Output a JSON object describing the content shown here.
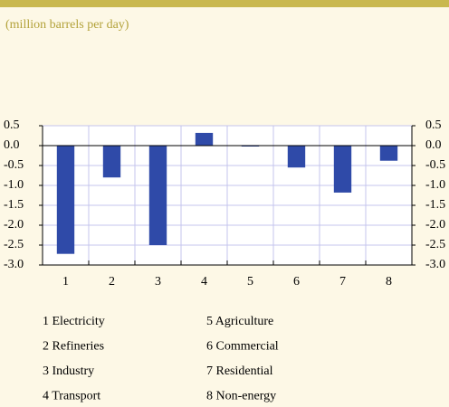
{
  "chart_data": {
    "type": "bar",
    "subtitle": "(million barrels per day)",
    "categories": [
      "1",
      "2",
      "3",
      "4",
      "5",
      "6",
      "7",
      "8"
    ],
    "values": [
      -2.72,
      -0.8,
      -2.5,
      0.32,
      -0.02,
      -0.55,
      -1.18,
      -0.38
    ],
    "color": "#2f4aa8",
    "ylim": [
      -3.0,
      0.5
    ],
    "yticks": [
      0.5,
      {
        "value": 0,
        "label": "0.0"
      },
      -0.5,
      {
        "value": -1,
        "label": "-1.0"
      },
      -1.5,
      {
        "value": -2,
        "label": "-2.0"
      },
      -2.5,
      {
        "value": -3,
        "label": "-3.0"
      }
    ],
    "y2lim": [
      -3.0,
      0.5
    ],
    "y2ticks": [
      0.5,
      {
        "value": 0,
        "label": "0.0"
      },
      -0.5,
      {
        "value": -1,
        "label": "-1.0"
      },
      -1.5,
      {
        "value": -2,
        "label": "-2.0"
      },
      -2.5,
      {
        "value": -3,
        "label": "-3.0"
      }
    ],
    "grid": true,
    "legend": [
      "1 Electricity",
      "2 Refineries",
      "3 Industry",
      "4 Transport",
      "5 Agriculture",
      "6 Commercial",
      "7 Residential",
      "8 Non-energy"
    ]
  }
}
